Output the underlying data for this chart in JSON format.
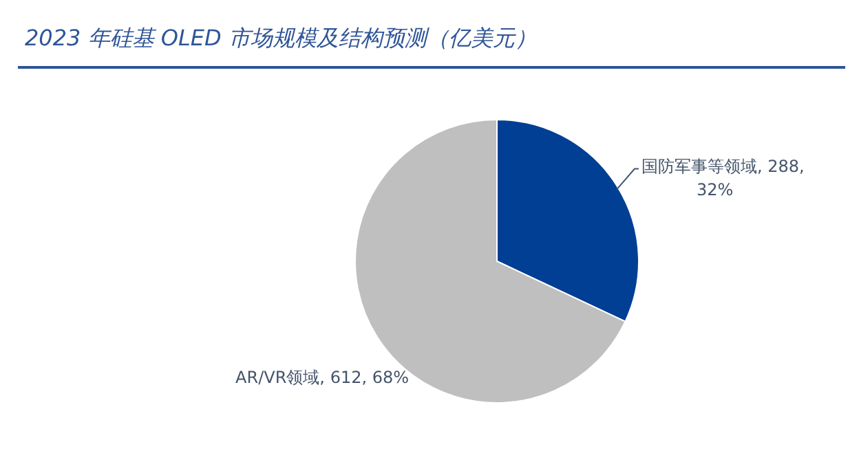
{
  "chart_data": {
    "type": "pie",
    "title": "2023 年硅基 OLED 市场规模及结构预测（亿美元）",
    "categories": [
      "国防军事等领域",
      "AR/VR领域"
    ],
    "values": [
      288,
      612
    ],
    "value_labels": [
      "288, 32%",
      "612, 68%"
    ],
    "colors": [
      "#003f94",
      "#bfbfbf"
    ],
    "legend": false
  }
}
